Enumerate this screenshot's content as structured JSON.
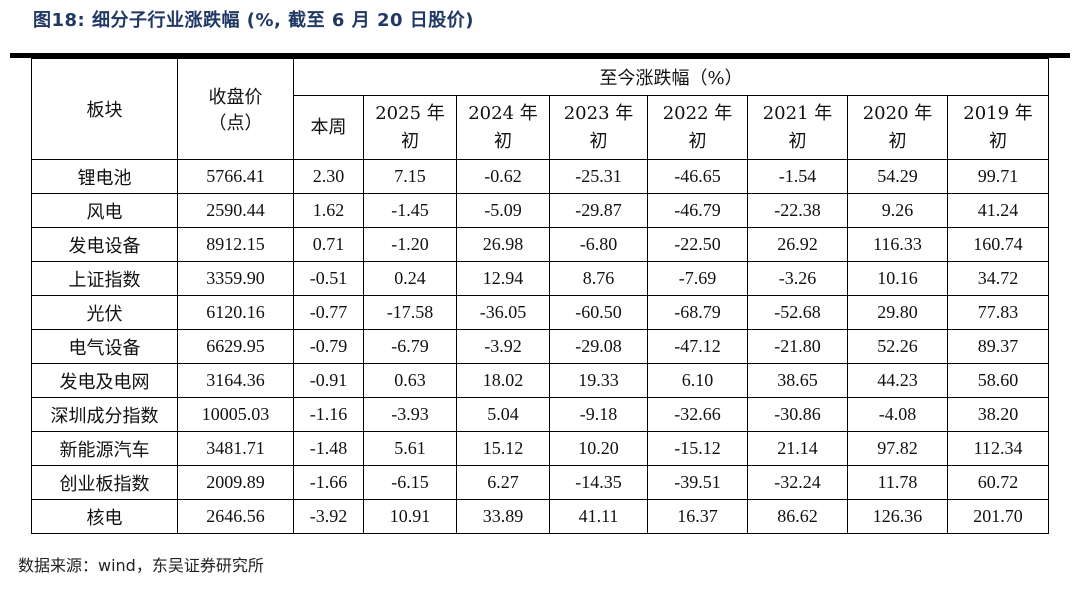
{
  "title": "图18:  细分子行业涨跌幅 (%, 截至 6 月 20 日股价)",
  "table": {
    "header_board": "板块",
    "header_close_line1": "收盘价",
    "header_close_line2": "（点）",
    "header_group": "至今涨跌幅（%）",
    "header_week": "本周",
    "year_columns": [
      {
        "year": "2025 年",
        "suffix": "初"
      },
      {
        "year": "2024 年",
        "suffix": "初"
      },
      {
        "year": "2023 年",
        "suffix": "初"
      },
      {
        "year": "2022 年",
        "suffix": "初"
      },
      {
        "year": "2021 年",
        "suffix": "初"
      },
      {
        "year": "2020 年",
        "suffix": "初"
      },
      {
        "year": "2019 年",
        "suffix": "初"
      }
    ],
    "rows": [
      {
        "name": "锂电池",
        "close": "5766.41",
        "week": "2.30",
        "y2025": "7.15",
        "y2024": "-0.62",
        "y2023": "-25.31",
        "y2022": "-46.65",
        "y2021": "-1.54",
        "y2020": "54.29",
        "y2019": "99.71"
      },
      {
        "name": "风电",
        "close": "2590.44",
        "week": "1.62",
        "y2025": "-1.45",
        "y2024": "-5.09",
        "y2023": "-29.87",
        "y2022": "-46.79",
        "y2021": "-22.38",
        "y2020": "9.26",
        "y2019": "41.24"
      },
      {
        "name": "发电设备",
        "close": "8912.15",
        "week": "0.71",
        "y2025": "-1.20",
        "y2024": "26.98",
        "y2023": "-6.80",
        "y2022": "-22.50",
        "y2021": "26.92",
        "y2020": "116.33",
        "y2019": "160.74"
      },
      {
        "name": "上证指数",
        "close": "3359.90",
        "week": "-0.51",
        "y2025": "0.24",
        "y2024": "12.94",
        "y2023": "8.76",
        "y2022": "-7.69",
        "y2021": "-3.26",
        "y2020": "10.16",
        "y2019": "34.72"
      },
      {
        "name": "光伏",
        "close": "6120.16",
        "week": "-0.77",
        "y2025": "-17.58",
        "y2024": "-36.05",
        "y2023": "-60.50",
        "y2022": "-68.79",
        "y2021": "-52.68",
        "y2020": "29.80",
        "y2019": "77.83"
      },
      {
        "name": "电气设备",
        "close": "6629.95",
        "week": "-0.79",
        "y2025": "-6.79",
        "y2024": "-3.92",
        "y2023": "-29.08",
        "y2022": "-47.12",
        "y2021": "-21.80",
        "y2020": "52.26",
        "y2019": "89.37"
      },
      {
        "name": "发电及电网",
        "close": "3164.36",
        "week": "-0.91",
        "y2025": "0.63",
        "y2024": "18.02",
        "y2023": "19.33",
        "y2022": "6.10",
        "y2021": "38.65",
        "y2020": "44.23",
        "y2019": "58.60"
      },
      {
        "name": "深圳成分指数",
        "close": "10005.03",
        "week": "-1.16",
        "y2025": "-3.93",
        "y2024": "5.04",
        "y2023": "-9.18",
        "y2022": "-32.66",
        "y2021": "-30.86",
        "y2020": "-4.08",
        "y2019": "38.20"
      },
      {
        "name": "新能源汽车",
        "close": "3481.71",
        "week": "-1.48",
        "y2025": "5.61",
        "y2024": "15.12",
        "y2023": "10.20",
        "y2022": "-15.12",
        "y2021": "21.14",
        "y2020": "97.82",
        "y2019": "112.34"
      },
      {
        "name": "创业板指数",
        "close": "2009.89",
        "week": "-1.66",
        "y2025": "-6.15",
        "y2024": "6.27",
        "y2023": "-14.35",
        "y2022": "-39.51",
        "y2021": "-32.24",
        "y2020": "11.78",
        "y2019": "60.72"
      },
      {
        "name": "核电",
        "close": "2646.56",
        "week": "-3.92",
        "y2025": "10.91",
        "y2024": "33.89",
        "y2023": "41.11",
        "y2022": "16.37",
        "y2021": "86.62",
        "y2020": "126.36",
        "y2019": "201.70"
      }
    ]
  },
  "source": "数据来源：wind，东吴证券研究所",
  "colors": {
    "title": "#1f3864",
    "rule": "#000000",
    "border": "#000000"
  }
}
